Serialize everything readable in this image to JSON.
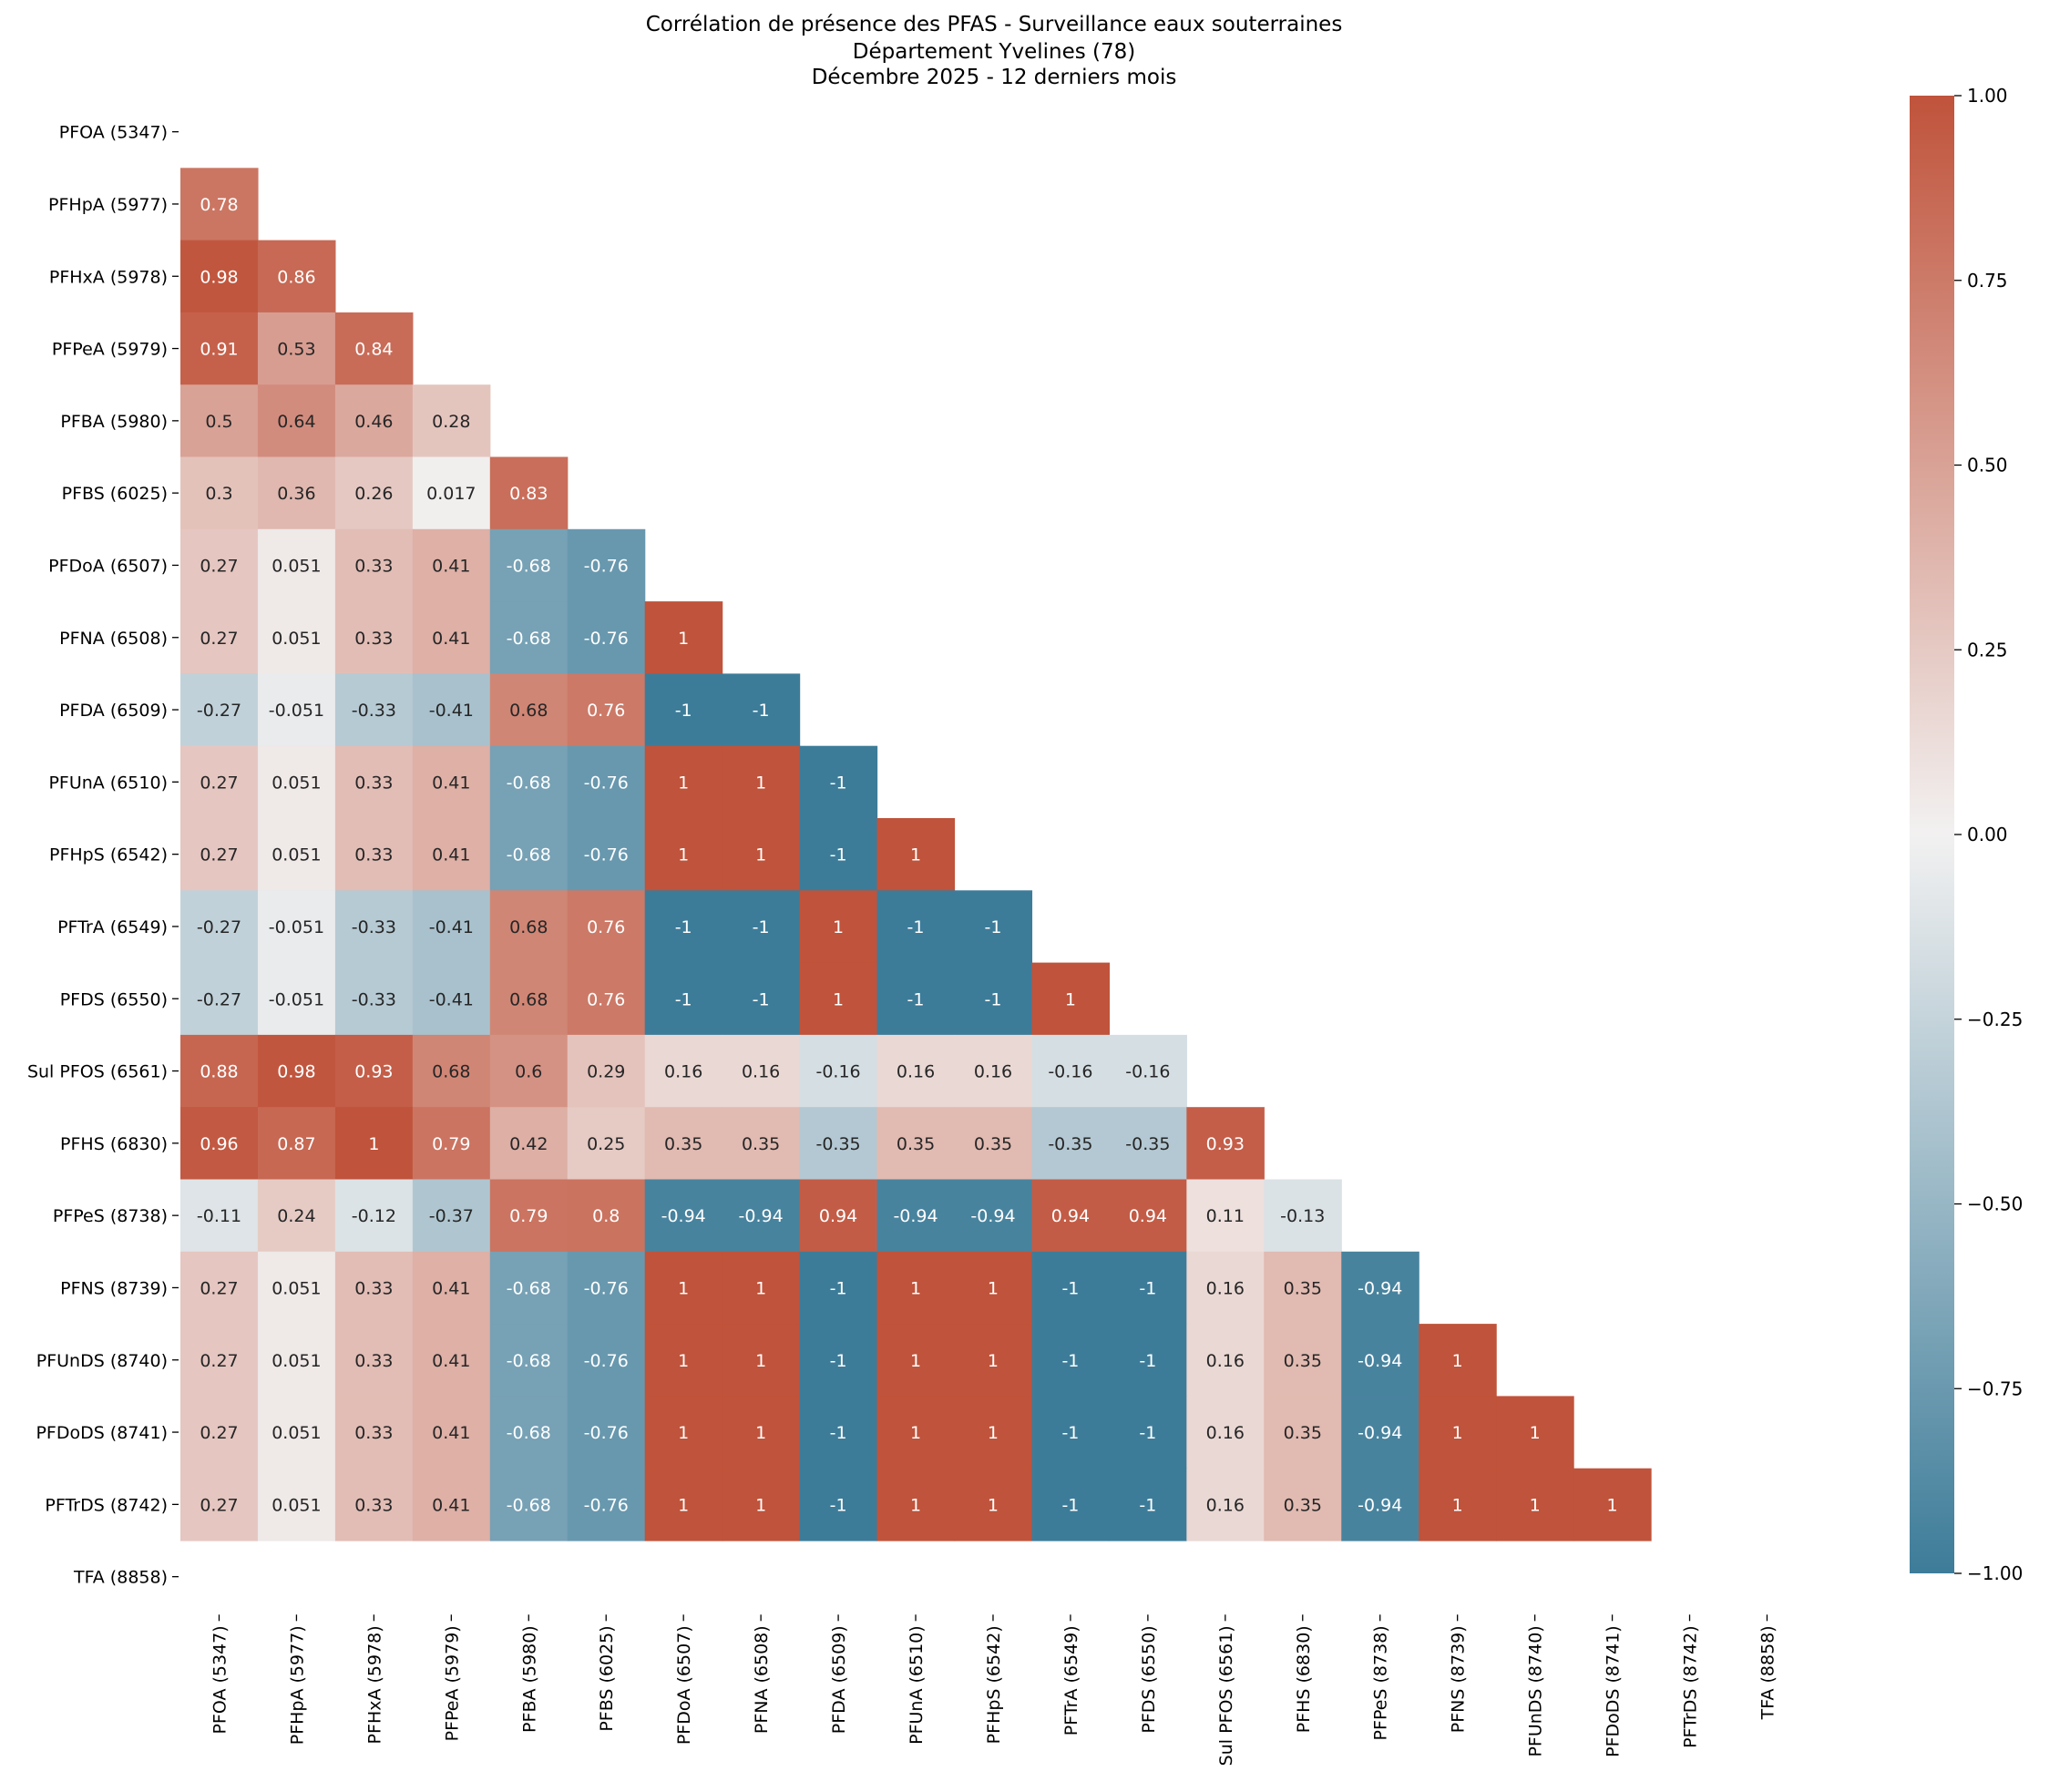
{
  "chart_data": {
    "type": "heatmap",
    "title_lines": [
      "Corrélation de présence des PFAS - Surveillance eaux souterraines",
      "Département Yvelines (78)",
      "Décembre 2025 - 12 derniers mois"
    ],
    "labels": [
      "PFOA (5347)",
      "PFHpA (5977)",
      "PFHxA (5978)",
      "PFPeA (5979)",
      "PFBA (5980)",
      "PFBS (6025)",
      "PFDoA (6507)",
      "PFNA (6508)",
      "PFDA (6509)",
      "PFUnA (6510)",
      "PFHpS (6542)",
      "PFTrA (6549)",
      "PFDS (6550)",
      "Sul PFOS (6561)",
      "PFHS (6830)",
      "PFPeS (8738)",
      "PFNS (8739)",
      "PFUnDS (8740)",
      "PFDoDS (8741)",
      "PFTrDS (8742)",
      "TFA (8858)"
    ],
    "mask": "upper-triangle-including-diagonal",
    "values": [
      [],
      [
        0.78
      ],
      [
        0.98,
        0.86
      ],
      [
        0.91,
        0.53,
        0.84
      ],
      [
        0.5,
        0.64,
        0.46,
        0.28
      ],
      [
        0.3,
        0.36,
        0.26,
        0.017,
        0.83
      ],
      [
        0.27,
        0.051,
        0.33,
        0.41,
        -0.68,
        -0.76
      ],
      [
        0.27,
        0.051,
        0.33,
        0.41,
        -0.68,
        -0.76,
        1
      ],
      [
        -0.27,
        -0.051,
        -0.33,
        -0.41,
        0.68,
        0.76,
        -1,
        -1
      ],
      [
        0.27,
        0.051,
        0.33,
        0.41,
        -0.68,
        -0.76,
        1,
        1,
        -1
      ],
      [
        0.27,
        0.051,
        0.33,
        0.41,
        -0.68,
        -0.76,
        1,
        1,
        -1,
        1
      ],
      [
        -0.27,
        -0.051,
        -0.33,
        -0.41,
        0.68,
        0.76,
        -1,
        -1,
        1,
        -1,
        -1
      ],
      [
        -0.27,
        -0.051,
        -0.33,
        -0.41,
        0.68,
        0.76,
        -1,
        -1,
        1,
        -1,
        -1,
        1
      ],
      [
        0.88,
        0.98,
        0.93,
        0.68,
        0.6,
        0.29,
        0.16,
        0.16,
        -0.16,
        0.16,
        0.16,
        -0.16,
        -0.16
      ],
      [
        0.96,
        0.87,
        1,
        0.79,
        0.42,
        0.25,
        0.35,
        0.35,
        -0.35,
        0.35,
        0.35,
        -0.35,
        -0.35,
        0.93
      ],
      [
        -0.11,
        0.24,
        -0.12,
        -0.37,
        0.79,
        0.8,
        -0.94,
        -0.94,
        0.94,
        -0.94,
        -0.94,
        0.94,
        0.94,
        0.11,
        -0.13
      ],
      [
        0.27,
        0.051,
        0.33,
        0.41,
        -0.68,
        -0.76,
        1,
        1,
        -1,
        1,
        1,
        -1,
        -1,
        0.16,
        0.35,
        -0.94
      ],
      [
        0.27,
        0.051,
        0.33,
        0.41,
        -0.68,
        -0.76,
        1,
        1,
        -1,
        1,
        1,
        -1,
        -1,
        0.16,
        0.35,
        -0.94,
        1
      ],
      [
        0.27,
        0.051,
        0.33,
        0.41,
        -0.68,
        -0.76,
        1,
        1,
        -1,
        1,
        1,
        -1,
        -1,
        0.16,
        0.35,
        -0.94,
        1,
        1
      ],
      [
        0.27,
        0.051,
        0.33,
        0.41,
        -0.68,
        -0.76,
        1,
        1,
        -1,
        1,
        1,
        -1,
        -1,
        0.16,
        0.35,
        -0.94,
        1,
        1,
        1
      ],
      []
    ],
    "colormap": {
      "name": "diverging-blue-red",
      "negative": "#3d7c99",
      "center": "#f2f1f1",
      "positive": "#c0533b"
    },
    "colorbar": {
      "vmin": -1,
      "vmax": 1,
      "ticks": [
        1.0,
        0.75,
        0.5,
        0.25,
        0.0,
        -0.25,
        -0.5,
        -0.75,
        -1.0
      ],
      "tick_labels": [
        "1.00",
        "0.75",
        "0.50",
        "0.25",
        "0.00",
        "−0.25",
        "−0.50",
        "−0.75",
        "−1.00"
      ]
    },
    "xlabel": "",
    "ylabel": "",
    "grid": false
  }
}
